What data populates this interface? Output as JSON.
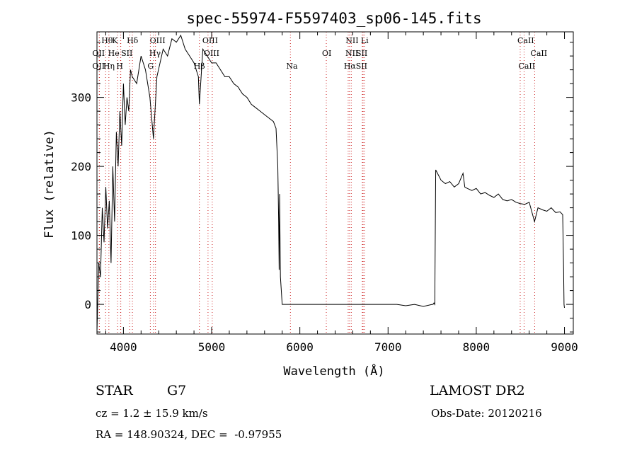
{
  "chart_data": {
    "type": "line",
    "title": "spec-55974-F5597403_sp06-145.fits",
    "xlabel": "Wavelength (Å)",
    "ylabel": "Flux (relative)",
    "xlim": [
      3700,
      9100
    ],
    "ylim": [
      -43,
      395
    ],
    "xticks": [
      4000,
      5000,
      6000,
      7000,
      8000,
      9000
    ],
    "yticks": [
      0,
      100,
      200,
      300
    ],
    "grid": false,
    "series": [
      {
        "x": [
          3700,
          3720,
          3740,
          3760,
          3780,
          3800,
          3820,
          3840,
          3860,
          3880,
          3900,
          3920,
          3940,
          3960,
          3980,
          4000,
          4020,
          4040,
          4060,
          4080,
          4100,
          4150,
          4200,
          4250,
          4300,
          4340,
          4380,
          4450,
          4500,
          4550,
          4600,
          4650,
          4700,
          4750,
          4800,
          4850,
          4861,
          4900,
          4950,
          5000,
          5050,
          5100,
          5150,
          5200,
          5250,
          5300,
          5350,
          5400,
          5450,
          5500,
          5550,
          5600,
          5650,
          5700,
          5730,
          5750,
          5760,
          5765,
          5770,
          5780,
          5800,
          6000,
          6500,
          7000,
          7100,
          7200,
          7300,
          7400,
          7500,
          7510,
          7520,
          7530,
          7540,
          7560,
          7600,
          7650,
          7700,
          7750,
          7800,
          7850,
          7870,
          7900,
          7950,
          8000,
          8050,
          8100,
          8150,
          8200,
          8250,
          8300,
          8350,
          8400,
          8450,
          8500,
          8550,
          8600,
          8660,
          8700,
          8750,
          8800,
          8850,
          8900,
          8950,
          8980,
          8990,
          8995,
          9000
        ],
        "y": [
          -40,
          60,
          40,
          140,
          90,
          170,
          110,
          150,
          60,
          200,
          120,
          250,
          200,
          280,
          230,
          320,
          260,
          300,
          280,
          340,
          330,
          320,
          360,
          340,
          300,
          240,
          330,
          370,
          360,
          385,
          380,
          390,
          370,
          360,
          350,
          330,
          290,
          370,
          360,
          350,
          350,
          340,
          330,
          330,
          320,
          315,
          305,
          300,
          290,
          285,
          280,
          275,
          270,
          265,
          255,
          200,
          120,
          50,
          160,
          40,
          0,
          0,
          0,
          0,
          0,
          -2,
          0,
          -3,
          0,
          0,
          2,
          0,
          195,
          190,
          180,
          175,
          178,
          170,
          175,
          190,
          170,
          168,
          165,
          168,
          160,
          162,
          158,
          155,
          160,
          152,
          150,
          152,
          148,
          146,
          145,
          148,
          120,
          140,
          137,
          135,
          140,
          133,
          134,
          130,
          50,
          0,
          -5
        ]
      }
    ],
    "lines": [
      {
        "name": "Hθ",
        "x": 3798,
        "row": 1,
        "dx": -6
      },
      {
        "name": "K",
        "x": 3934,
        "row": 1,
        "dx": -8
      },
      {
        "name": "Hδ",
        "x": 4102,
        "row": 1,
        "dx": -8
      },
      {
        "name": "OII",
        "x": 3727,
        "row": 2,
        "dx": -10
      },
      {
        "name": "He",
        "x": 3970,
        "row": 2,
        "dx": -18
      },
      {
        "name": "SII",
        "x": 4070,
        "row": 2,
        "dx": -12
      },
      {
        "name": "OII",
        "x": 3727,
        "row": 3,
        "dx": -10
      },
      {
        "name": "Hη",
        "x": 3835,
        "row": 3,
        "dx": -8
      },
      {
        "name": "H",
        "x": 3968,
        "row": 3,
        "dx": -6
      },
      {
        "name": "OIII",
        "x": 4363,
        "row": 1,
        "dx": -8
      },
      {
        "name": "Hγ",
        "x": 4341,
        "row": 2,
        "dx": -6
      },
      {
        "name": "G",
        "x": 4305,
        "row": 3,
        "dx": -4
      },
      {
        "name": "OIII",
        "x": 4959,
        "row": 1,
        "dx": -8
      },
      {
        "name": "OIII",
        "x": 5007,
        "row": 2,
        "dx": -12
      },
      {
        "name": "Hβ",
        "x": 4861,
        "row": 3,
        "dx": -8
      },
      {
        "name": "Na",
        "x": 5893,
        "row": 3,
        "dx": -6
      },
      {
        "name": "OI",
        "x": 6300,
        "row": 2,
        "dx": -6
      },
      {
        "name": "NII",
        "x": 6583,
        "row": 1,
        "dx": -8
      },
      {
        "name": "Li",
        "x": 6708,
        "row": 1,
        "dx": -2
      },
      {
        "name": "NII",
        "x": 6548,
        "row": 2,
        "dx": -4
      },
      {
        "name": "SII",
        "x": 6717,
        "row": 2,
        "dx": -10
      },
      {
        "name": "Hα",
        "x": 6563,
        "row": 3,
        "dx": -8
      },
      {
        "name": "SII",
        "x": 6731,
        "row": 3,
        "dx": -12
      },
      {
        "name": "CaII",
        "x": 8498,
        "row": 1,
        "dx": -4
      },
      {
        "name": "CaII",
        "x": 8662,
        "row": 2,
        "dx": -6
      },
      {
        "name": "CaII",
        "x": 8542,
        "row": 3,
        "dx": -8
      }
    ]
  },
  "info": {
    "class": "STAR",
    "subclass": "G7",
    "survey": "LAMOST DR2",
    "cz": "cz = 1.2 ± 15.9 km/s",
    "obsdate": "Obs-Date: 20120216",
    "radec": "RA = 148.90324, DEC =  -0.97955"
  }
}
